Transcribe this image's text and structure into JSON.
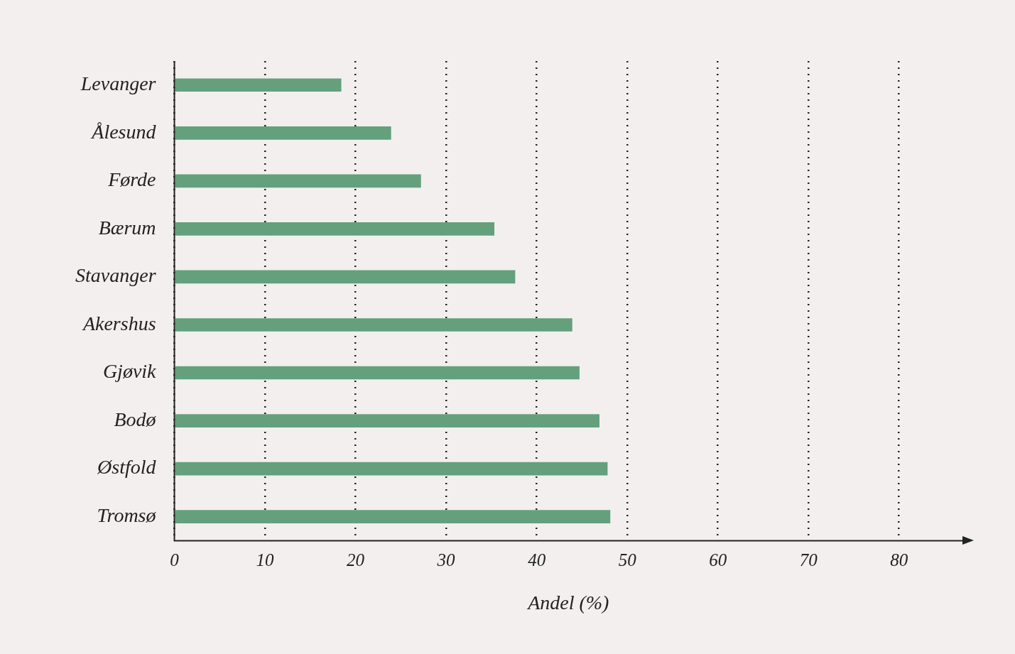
{
  "chart_data": {
    "type": "bar",
    "orientation": "horizontal",
    "xlabel": "Andel (%)",
    "categories": [
      "Levanger",
      "Ålesund",
      "Førde",
      "Bærum",
      "Stavanger",
      "Akershus",
      "Gjøvik",
      "Bodø",
      "Østfold",
      "Tromsø"
    ],
    "values": [
      18.4,
      23.9,
      27.2,
      35.3,
      37.6,
      43.9,
      44.7,
      46.9,
      47.8,
      48.1
    ],
    "color": "#64a07c",
    "xlim": [
      0,
      87
    ],
    "xticks": [
      0,
      10,
      20,
      30,
      40,
      50,
      60,
      70,
      80
    ],
    "grid": "x",
    "legend": false
  }
}
